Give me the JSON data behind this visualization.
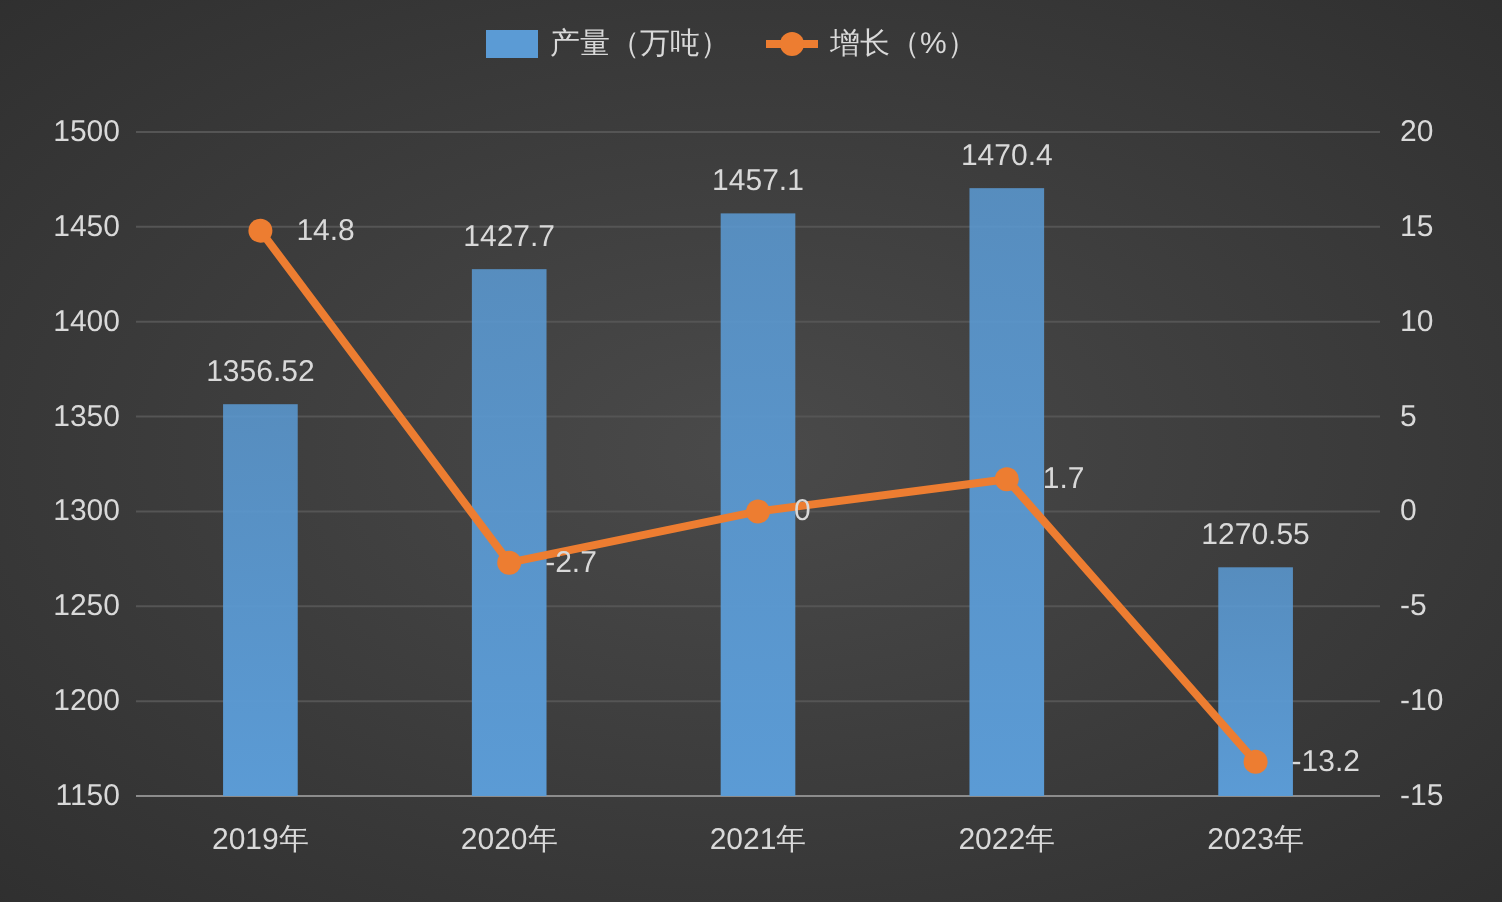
{
  "chart_data": {
    "type": "bar",
    "categories": [
      "2019年",
      "2020年",
      "2021年",
      "2022年",
      "2023年"
    ],
    "series": [
      {
        "name": "产量（万吨）",
        "type": "bar",
        "color": "#5b9bd5",
        "values": [
          1356.52,
          1427.7,
          1457.1,
          1470.4,
          1270.55
        ]
      },
      {
        "name": "增长（%）",
        "type": "line",
        "axis": "y2",
        "color": "#ed7d31",
        "values": [
          14.8,
          -2.7,
          0,
          1.7,
          -13.2
        ]
      }
    ],
    "ylim": [
      1150,
      1500
    ],
    "yticks": [
      1150,
      1200,
      1250,
      1300,
      1350,
      1400,
      1450,
      1500
    ],
    "y2lim": [
      -15,
      20
    ],
    "y2ticks": [
      -15,
      -10,
      -5,
      0,
      5,
      10,
      15,
      20
    ],
    "grid": "y",
    "legend": "top",
    "marker": "circle",
    "line_style": "solid",
    "data_labels": true
  }
}
